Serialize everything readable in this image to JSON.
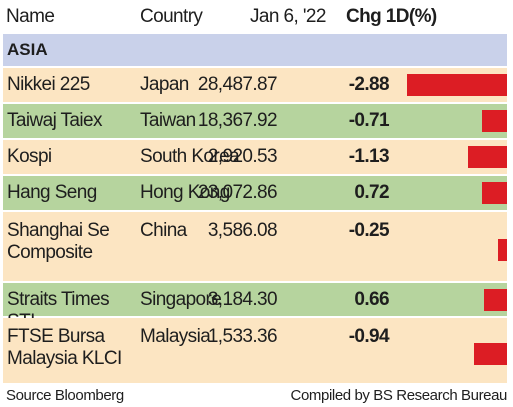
{
  "chart_data": {
    "type": "table",
    "columns": [
      "Name",
      "Country",
      "Jan 6, '22",
      "Chg 1D(%)"
    ],
    "section": "ASIA",
    "rows": [
      {
        "name": "Nikkei 225",
        "country": "Japan",
        "value": "28,487.87",
        "chg": "-2.88",
        "chg_value": -2.88
      },
      {
        "name": "Taiwaj Taiex",
        "country": "Taiwan",
        "value": "18,367.92",
        "chg": "-0.71",
        "chg_value": -0.71
      },
      {
        "name": "Kospi",
        "country": "South Korea",
        "value": "2,920.53",
        "chg": "-1.13",
        "chg_value": -1.13
      },
      {
        "name": "Hang Seng",
        "country": "Hong Kong",
        "value": "23,072.86",
        "chg": "0.72",
        "chg_value": 0.72
      },
      {
        "name": "Shanghai Se Composite",
        "country": "China",
        "value": "3,586.08",
        "chg": "-0.25",
        "chg_value": -0.25
      },
      {
        "name": "Straits Times STI",
        "country": "Singapore",
        "value": "3,184.30",
        "chg": "0.66",
        "chg_value": 0.66
      },
      {
        "name": "FTSE Bursa Malaysia KLCI",
        "country": "Malaysia",
        "value": "1,533.36",
        "chg": "-0.94",
        "chg_value": -0.94
      }
    ],
    "bar_color": "#dc1d24",
    "row_colors": [
      "#fce5c2",
      "#b6d49e"
    ],
    "section_color": "#c9d1ea"
  },
  "footer": {
    "source": "Source Bloomberg",
    "compiled": "Compiled by BS Research Bureau"
  }
}
